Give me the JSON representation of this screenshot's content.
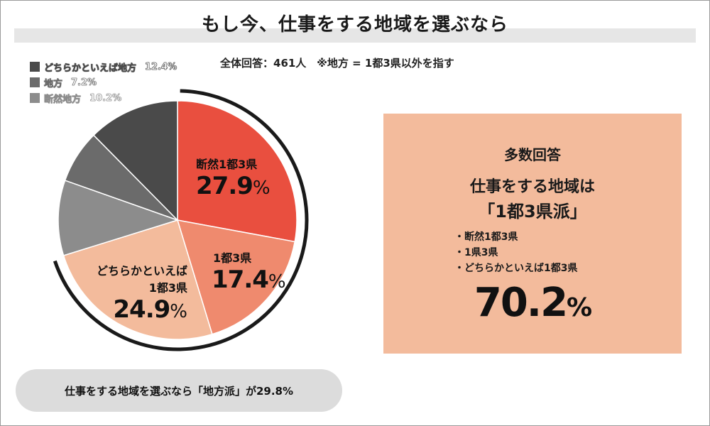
{
  "title": "もし今、仕事をする地域を選ぶなら",
  "subtitle": "全体回答：461人　※地方 = 1都3県以外を指す",
  "legend": [
    {
      "label": "どちらかといえば地方",
      "value": "12.4%",
      "color": "#4a4a4a"
    },
    {
      "label": "地方",
      "value": "7.2%",
      "color": "#6b6b6b"
    },
    {
      "label": "断然地方",
      "value": "10.2%",
      "color": "#8c8c8c"
    }
  ],
  "chart_data": {
    "type": "pie",
    "title": "もし今、仕事をする地域を選ぶなら",
    "slices": [
      {
        "name": "断然1都3県",
        "value": 27.9,
        "color": "#e94f3f"
      },
      {
        "name": "1都3県",
        "value": 17.4,
        "color": "#ef8a6e"
      },
      {
        "name": "どちらかといえば1都3県",
        "value": 24.9,
        "color": "#f3bb9c"
      },
      {
        "name": "断然地方",
        "value": 10.2,
        "color": "#8c8c8c"
      },
      {
        "name": "地方",
        "value": 7.2,
        "color": "#6b6b6b"
      },
      {
        "name": "どちらかといえば地方",
        "value": 12.4,
        "color": "#4a4a4a"
      }
    ]
  },
  "pie_labels": {
    "s1": {
      "name": "断然1都3県",
      "value": "27.9",
      "unit": "%"
    },
    "s2": {
      "name": "1都3県",
      "value": "17.4",
      "unit": "%"
    },
    "s3": {
      "name1": "どちらかといえば",
      "name2": "1都3県",
      "value": "24.9",
      "unit": "%"
    }
  },
  "panel": {
    "heading": "多数回答",
    "line1": "仕事をする地域は",
    "line2": "「1都3県派」",
    "items": [
      "断然1都3県",
      "1県3県",
      "どちらかといえば1都3県"
    ],
    "total_value": "70.2",
    "total_unit": "%"
  },
  "footer": "仕事をする地域を選ぶなら「地方派」が29.8%"
}
